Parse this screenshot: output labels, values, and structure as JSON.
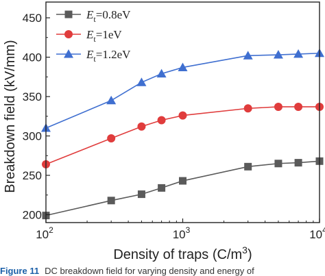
{
  "chart_data": {
    "type": "line",
    "xscale": "log",
    "xlim": [
      100,
      10000
    ],
    "ylim": [
      190,
      470
    ],
    "xticks": [
      100,
      1000,
      10000
    ],
    "xtick_labels": [
      {
        "base": "10",
        "exp": "2"
      },
      {
        "base": "10",
        "exp": "3"
      },
      {
        "base": "10",
        "exp": "4"
      }
    ],
    "yticks": [
      200,
      250,
      300,
      350,
      400,
      450
    ],
    "ytick_labels": [
      "200",
      "250",
      "300",
      "350",
      "400",
      "450"
    ],
    "xlabel": {
      "text": "Density of traps (C/m",
      "sup": "3",
      "tail": ")"
    },
    "ylabel": "Breakdown field (kV/mm)",
    "legend_position": "top-left",
    "series": [
      {
        "name": {
          "prefix": "E",
          "sub": "t",
          "value": "=0.8eV"
        },
        "color": "#5a5a5a",
        "marker": "square",
        "x": [
          100,
          300,
          500,
          700,
          1000,
          3000,
          5000,
          7000,
          10000
        ],
        "y": [
          199,
          218,
          226,
          234,
          243,
          261,
          265,
          266,
          268
        ]
      },
      {
        "name": {
          "prefix": "E",
          "sub": "t",
          "value": "=1eV"
        },
        "color": "#e03c3c",
        "marker": "circle",
        "x": [
          100,
          300,
          500,
          700,
          1000,
          3000,
          5000,
          7000,
          10000
        ],
        "y": [
          264,
          297,
          312,
          320,
          326,
          335,
          337,
          337,
          337
        ]
      },
      {
        "name": {
          "prefix": "E",
          "sub": "t",
          "value": "=1.2eV"
        },
        "color": "#3f6fd0",
        "marker": "triangle",
        "x": [
          100,
          300,
          500,
          700,
          1000,
          3000,
          5000,
          7000,
          10000
        ],
        "y": [
          310,
          345,
          368,
          379,
          387,
          402,
          403,
          404,
          405
        ]
      }
    ]
  },
  "caption": {
    "label": "Figure 11",
    "text": "DC breakdown field for varying density and energy of"
  }
}
